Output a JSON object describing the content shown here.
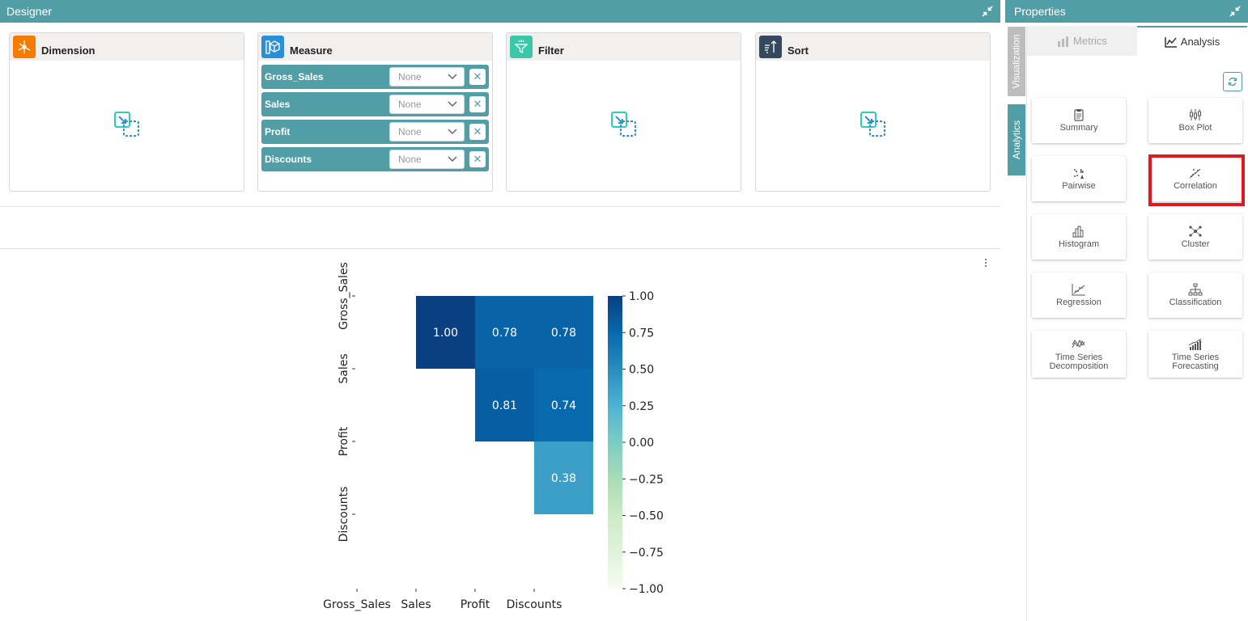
{
  "designer": {
    "title": "Designer",
    "shelves": {
      "dimension": {
        "title": "Dimension"
      },
      "measure": {
        "title": "Measure",
        "items": [
          {
            "label": "Gross_Sales",
            "aggregation": "None"
          },
          {
            "label": "Sales",
            "aggregation": "None"
          },
          {
            "label": "Profit",
            "aggregation": "None"
          },
          {
            "label": "Discounts",
            "aggregation": "None"
          }
        ],
        "remove_glyph": "✕"
      },
      "filter": {
        "title": "Filter"
      },
      "sort": {
        "title": "Sort"
      }
    },
    "colors": {
      "header": "#519ea7",
      "dimension": "#f57c00",
      "measure": "#2b8fd6",
      "filter": "#3cc7a8",
      "sort": "#35495e"
    }
  },
  "properties": {
    "title": "Properties",
    "side_tabs": {
      "visualization": "Visualization",
      "analytics": "Analytics"
    },
    "tabs": {
      "metrics": "Metrics",
      "analysis": "Analysis"
    },
    "cards": [
      {
        "line1": "Summary",
        "line2": "",
        "icon": "clipboard-icon"
      },
      {
        "line1": "Box Plot",
        "line2": "",
        "icon": "box-plot-icon"
      },
      {
        "line1": "Pairwise",
        "line2": "",
        "icon": "pairwise-icon"
      },
      {
        "line1": "Correlation",
        "line2": "",
        "icon": "correlation-icon",
        "selected": true
      },
      {
        "line1": "Histogram",
        "line2": "",
        "icon": "histogram-icon"
      },
      {
        "line1": "Cluster",
        "line2": "",
        "icon": "cluster-icon"
      },
      {
        "line1": "Regression",
        "line2": "",
        "icon": "regression-icon"
      },
      {
        "line1": "Classification",
        "line2": "",
        "icon": "classification-icon"
      },
      {
        "line1": "Time Series",
        "line2": "Decomposition",
        "icon": "time-series-decomposition-icon"
      },
      {
        "line1": "Time Series",
        "line2": "Forecasting",
        "icon": "time-series-forecasting-icon"
      }
    ]
  },
  "chart_data": {
    "type": "heatmap",
    "variables": [
      "Gross_Sales",
      "Sales",
      "Profit",
      "Discounts"
    ],
    "cells": [
      {
        "row": 0,
        "col": 1,
        "value": 1.0,
        "label": "1.00"
      },
      {
        "row": 0,
        "col": 2,
        "value": 0.78,
        "label": "0.78"
      },
      {
        "row": 0,
        "col": 3,
        "value": 0.78,
        "label": "0.78"
      },
      {
        "row": 1,
        "col": 2,
        "value": 0.81,
        "label": "0.81"
      },
      {
        "row": 1,
        "col": 3,
        "value": 0.74,
        "label": "0.74"
      },
      {
        "row": 2,
        "col": 3,
        "value": 0.38,
        "label": "0.38"
      }
    ],
    "colorbar": {
      "range": [
        -1,
        1
      ],
      "ticks": [
        "1.00",
        "0.75",
        "0.50",
        "0.25",
        "0.00",
        "−0.25",
        "−0.50",
        "−0.75",
        "−1.00"
      ]
    },
    "colormap": [
      "#f7fcf0",
      "#e0f3db",
      "#ccebc5",
      "#a8ddb5",
      "#7bccc4",
      "#4eb3d3",
      "#2b8cbe",
      "#0868ac",
      "#084081"
    ]
  }
}
